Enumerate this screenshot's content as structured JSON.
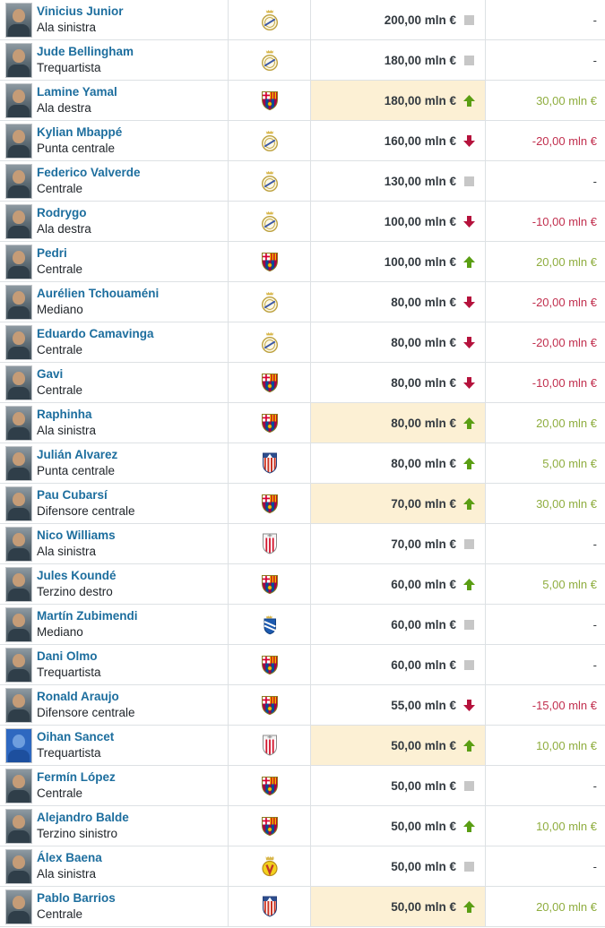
{
  "table": {
    "value_unit": "mln €",
    "rows": [
      {
        "name": "Vinicius Junior",
        "position": "Ala sinistra",
        "club": "Real Madrid",
        "value": "200,00 mln €",
        "trend": "none",
        "change": "-",
        "change_type": "none",
        "highlight": false,
        "photo": "portrait"
      },
      {
        "name": "Jude Bellingham",
        "position": "Trequartista",
        "club": "Real Madrid",
        "value": "180,00 mln €",
        "trend": "none",
        "change": "-",
        "change_type": "none",
        "highlight": false,
        "photo": "portrait"
      },
      {
        "name": "Lamine Yamal",
        "position": "Ala destra",
        "club": "FC Barcelona",
        "value": "180,00 mln €",
        "trend": "up",
        "change": "30,00 mln €",
        "change_type": "up",
        "highlight": true,
        "photo": "portrait"
      },
      {
        "name": "Kylian Mbappé",
        "position": "Punta centrale",
        "club": "Real Madrid",
        "value": "160,00 mln €",
        "trend": "down",
        "change": "-20,00 mln €",
        "change_type": "down",
        "highlight": false,
        "photo": "portrait"
      },
      {
        "name": "Federico Valverde",
        "position": "Centrale",
        "club": "Real Madrid",
        "value": "130,00 mln €",
        "trend": "none",
        "change": "-",
        "change_type": "none",
        "highlight": false,
        "photo": "portrait"
      },
      {
        "name": "Rodrygo",
        "position": "Ala destra",
        "club": "Real Madrid",
        "value": "100,00 mln €",
        "trend": "down",
        "change": "-10,00 mln €",
        "change_type": "down",
        "highlight": false,
        "photo": "portrait"
      },
      {
        "name": "Pedri",
        "position": "Centrale",
        "club": "FC Barcelona",
        "value": "100,00 mln €",
        "trend": "up",
        "change": "20,00 mln €",
        "change_type": "up",
        "highlight": false,
        "photo": "portrait"
      },
      {
        "name": "Aurélien Tchouaméni",
        "position": "Mediano",
        "club": "Real Madrid",
        "value": "80,00 mln €",
        "trend": "down",
        "change": "-20,00 mln €",
        "change_type": "down",
        "highlight": false,
        "photo": "portrait"
      },
      {
        "name": "Eduardo Camavinga",
        "position": "Centrale",
        "club": "Real Madrid",
        "value": "80,00 mln €",
        "trend": "down",
        "change": "-20,00 mln €",
        "change_type": "down",
        "highlight": false,
        "photo": "portrait"
      },
      {
        "name": "Gavi",
        "position": "Centrale",
        "club": "FC Barcelona",
        "value": "80,00 mln €",
        "trend": "down",
        "change": "-10,00 mln €",
        "change_type": "down",
        "highlight": false,
        "photo": "portrait"
      },
      {
        "name": "Raphinha",
        "position": "Ala sinistra",
        "club": "FC Barcelona",
        "value": "80,00 mln €",
        "trend": "up",
        "change": "20,00 mln €",
        "change_type": "up",
        "highlight": true,
        "photo": "portrait"
      },
      {
        "name": "Julián Alvarez",
        "position": "Punta centrale",
        "club": "Atlético Madrid",
        "value": "80,00 mln €",
        "trend": "up",
        "change": "5,00 mln €",
        "change_type": "up",
        "highlight": false,
        "photo": "portrait"
      },
      {
        "name": "Pau Cubarsí",
        "position": "Difensore centrale",
        "club": "FC Barcelona",
        "value": "70,00 mln €",
        "trend": "up",
        "change": "30,00 mln €",
        "change_type": "up",
        "highlight": true,
        "photo": "portrait"
      },
      {
        "name": "Nico Williams",
        "position": "Ala sinistra",
        "club": "Athletic Bilbao",
        "value": "70,00 mln €",
        "trend": "none",
        "change": "-",
        "change_type": "none",
        "highlight": false,
        "photo": "portrait"
      },
      {
        "name": "Jules Koundé",
        "position": "Terzino destro",
        "club": "FC Barcelona",
        "value": "60,00 mln €",
        "trend": "up",
        "change": "5,00 mln €",
        "change_type": "up",
        "highlight": false,
        "photo": "portrait"
      },
      {
        "name": "Martín Zubimendi",
        "position": "Mediano",
        "club": "Real Sociedad",
        "value": "60,00 mln €",
        "trend": "none",
        "change": "-",
        "change_type": "none",
        "highlight": false,
        "photo": "portrait"
      },
      {
        "name": "Dani Olmo",
        "position": "Trequartista",
        "club": "FC Barcelona",
        "value": "60,00 mln €",
        "trend": "none",
        "change": "-",
        "change_type": "none",
        "highlight": false,
        "photo": "portrait"
      },
      {
        "name": "Ronald Araujo",
        "position": "Difensore centrale",
        "club": "FC Barcelona",
        "value": "55,00 mln €",
        "trend": "down",
        "change": "-15,00 mln €",
        "change_type": "down",
        "highlight": false,
        "photo": "portrait"
      },
      {
        "name": "Oihan Sancet",
        "position": "Trequartista",
        "club": "Athletic Bilbao",
        "value": "50,00 mln €",
        "trend": "up",
        "change": "10,00 mln €",
        "change_type": "up",
        "highlight": true,
        "photo": "blue-silhouette"
      },
      {
        "name": "Fermín López",
        "position": "Centrale",
        "club": "FC Barcelona",
        "value": "50,00 mln €",
        "trend": "none",
        "change": "-",
        "change_type": "none",
        "highlight": false,
        "photo": "portrait"
      },
      {
        "name": "Alejandro Balde",
        "position": "Terzino sinistro",
        "club": "FC Barcelona",
        "value": "50,00 mln €",
        "trend": "up",
        "change": "10,00 mln €",
        "change_type": "up",
        "highlight": false,
        "photo": "portrait"
      },
      {
        "name": "Álex Baena",
        "position": "Ala sinistra",
        "club": "Villarreal",
        "value": "50,00 mln €",
        "trend": "none",
        "change": "-",
        "change_type": "none",
        "highlight": false,
        "photo": "portrait"
      },
      {
        "name": "Pablo Barrios",
        "position": "Centrale",
        "club": "Atlético Madrid",
        "value": "50,00 mln €",
        "trend": "up",
        "change": "20,00 mln €",
        "change_type": "up",
        "highlight": true,
        "photo": "portrait"
      }
    ]
  },
  "colors": {
    "link_blue": "#1d6e9e",
    "value_text": "#333a40",
    "positive_text": "#8fad3f",
    "positive_arrow": "#5a9e13",
    "negative_text": "#c12f4e",
    "negative_arrow": "#b5123c",
    "neutral_square": "#c7c7c7",
    "highlight_bg": "#fcf0d4",
    "row_border": "#dde1e4"
  },
  "icons": {
    "up": "trend-up-arrow",
    "down": "trend-down-arrow",
    "none": "no-change-square"
  }
}
